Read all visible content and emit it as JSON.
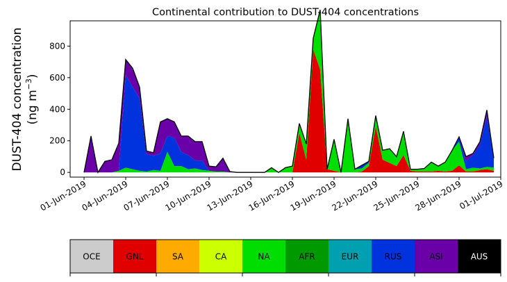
{
  "chart_data": {
    "type": "area",
    "stacked": true,
    "title": "Continental contribution to DUST-404 concentrations",
    "ylabel_line1": "DUST-404 concentration",
    "ylabel_line2_pre": "(ng m",
    "ylabel_line2_sup": "−3",
    "ylabel_line2_post": ")",
    "xlabel": "",
    "xlim": [
      "2019-05-31",
      "2019-07-01"
    ],
    "ylim": [
      -30,
      960
    ],
    "yticks": [
      0,
      200,
      400,
      600,
      800
    ],
    "xticks": [
      "01-Jun-2019",
      "04-Jun-2019",
      "07-Jun-2019",
      "10-Jun-2019",
      "13-Jun-2019",
      "16-Jun-2019",
      "19-Jun-2019",
      "22-Jun-2019",
      "25-Jun-2019",
      "28-Jun-2019",
      "01-Jul-2019"
    ],
    "x": [
      "2019-06-01",
      "2019-06-01T12",
      "2019-06-02",
      "2019-06-02T12",
      "2019-06-03",
      "2019-06-03T12",
      "2019-06-04",
      "2019-06-04T12",
      "2019-06-05",
      "2019-06-05T12",
      "2019-06-06",
      "2019-06-06T12",
      "2019-06-07",
      "2019-06-07T12",
      "2019-06-08",
      "2019-06-08T12",
      "2019-06-09",
      "2019-06-09T12",
      "2019-06-10",
      "2019-06-10T12",
      "2019-06-11",
      "2019-06-11T12",
      "2019-06-12",
      "2019-06-12T12",
      "2019-06-13",
      "2019-06-13T12",
      "2019-06-14",
      "2019-06-14T12",
      "2019-06-15",
      "2019-06-15T12",
      "2019-06-16",
      "2019-06-16T12",
      "2019-06-17",
      "2019-06-17T12",
      "2019-06-18",
      "2019-06-18T12",
      "2019-06-19",
      "2019-06-19T12",
      "2019-06-20",
      "2019-06-20T12",
      "2019-06-21",
      "2019-06-21T12",
      "2019-06-22",
      "2019-06-22T12",
      "2019-06-23",
      "2019-06-23T12",
      "2019-06-24",
      "2019-06-24T12",
      "2019-06-25",
      "2019-06-25T12",
      "2019-06-26",
      "2019-06-26T12",
      "2019-06-27",
      "2019-06-27T12",
      "2019-06-28",
      "2019-06-28T12",
      "2019-06-29",
      "2019-06-29T12",
      "2019-06-30",
      "2019-06-30T12"
    ],
    "series": [
      {
        "name": "OCE",
        "color": "#cccccc",
        "values": [
          0,
          0,
          0,
          0,
          0,
          0,
          0,
          0,
          0,
          0,
          0,
          0,
          0,
          0,
          0,
          0,
          0,
          0,
          0,
          0,
          0,
          0,
          0,
          0,
          0,
          0,
          0,
          0,
          0,
          0,
          0,
          0,
          0,
          0,
          0,
          0,
          0,
          0,
          0,
          0,
          0,
          0,
          0,
          0,
          0,
          0,
          0,
          0,
          0,
          0,
          0,
          0,
          0,
          0,
          0,
          0,
          0,
          0,
          0,
          0
        ]
      },
      {
        "name": "GNL",
        "color": "#e00000",
        "values": [
          0,
          0,
          0,
          0,
          0,
          0,
          0,
          0,
          0,
          0,
          0,
          0,
          0,
          0,
          0,
          0,
          0,
          0,
          0,
          0,
          0,
          0,
          0,
          0,
          0,
          0,
          0,
          0,
          0,
          0,
          0,
          250,
          80,
          780,
          650,
          20,
          10,
          0,
          0,
          0,
          5,
          40,
          290,
          80,
          60,
          40,
          110,
          10,
          5,
          5,
          5,
          10,
          5,
          10,
          45,
          5,
          5,
          15,
          20,
          10
        ]
      },
      {
        "name": "SA",
        "color": "#ffaa00",
        "values": [
          0,
          0,
          0,
          0,
          0,
          0,
          0,
          0,
          0,
          0,
          0,
          0,
          0,
          0,
          0,
          0,
          0,
          0,
          0,
          0,
          0,
          0,
          0,
          0,
          0,
          0,
          0,
          0,
          0,
          0,
          0,
          0,
          0,
          0,
          0,
          0,
          0,
          0,
          0,
          0,
          0,
          0,
          0,
          0,
          0,
          0,
          0,
          0,
          0,
          0,
          0,
          0,
          0,
          0,
          0,
          0,
          0,
          0,
          0,
          0
        ]
      },
      {
        "name": "CA",
        "color": "#ccff00",
        "values": [
          0,
          0,
          0,
          0,
          0,
          0,
          0,
          0,
          0,
          0,
          0,
          0,
          0,
          0,
          0,
          0,
          0,
          0,
          0,
          0,
          0,
          0,
          0,
          0,
          0,
          0,
          0,
          0,
          0,
          0,
          0,
          0,
          0,
          0,
          0,
          0,
          0,
          0,
          0,
          0,
          0,
          0,
          0,
          0,
          0,
          0,
          0,
          0,
          0,
          0,
          0,
          0,
          0,
          0,
          0,
          0,
          0,
          0,
          0,
          0
        ]
      },
      {
        "name": "NA",
        "color": "#00dd00",
        "values": [
          0,
          0,
          0,
          0,
          0,
          10,
          30,
          20,
          10,
          5,
          15,
          10,
          130,
          40,
          40,
          20,
          25,
          15,
          10,
          5,
          5,
          0,
          0,
          0,
          0,
          0,
          0,
          30,
          0,
          30,
          40,
          60,
          100,
          70,
          380,
          0,
          200,
          0,
          340,
          20,
          20,
          20,
          70,
          60,
          90,
          60,
          150,
          10,
          15,
          20,
          60,
          30,
          60,
          130,
          150,
          15,
          25,
          10,
          15,
          20
        ]
      },
      {
        "name": "AFR",
        "color": "#009900",
        "values": [
          0,
          0,
          0,
          0,
          0,
          0,
          0,
          0,
          0,
          0,
          0,
          0,
          0,
          0,
          0,
          0,
          0,
          0,
          0,
          0,
          0,
          0,
          0,
          0,
          0,
          0,
          0,
          0,
          0,
          0,
          0,
          0,
          0,
          0,
          0,
          0,
          0,
          0,
          0,
          0,
          0,
          0,
          0,
          0,
          0,
          0,
          0,
          0,
          0,
          0,
          0,
          0,
          0,
          0,
          0,
          0,
          0,
          0,
          0,
          0
        ]
      },
      {
        "name": "EUR",
        "color": "#00a0b0",
        "values": [
          0,
          0,
          0,
          0,
          0,
          0,
          0,
          0,
          0,
          0,
          0,
          0,
          0,
          0,
          0,
          0,
          0,
          0,
          0,
          0,
          0,
          0,
          0,
          0,
          0,
          0,
          0,
          0,
          0,
          0,
          0,
          0,
          0,
          0,
          0,
          0,
          0,
          0,
          0,
          0,
          0,
          0,
          0,
          0,
          0,
          0,
          0,
          0,
          0,
          0,
          0,
          0,
          0,
          0,
          0,
          0,
          0,
          0,
          0,
          0
        ]
      },
      {
        "name": "RUS",
        "color": "#0033dd",
        "values": [
          0,
          0,
          0,
          0,
          0,
          0,
          590,
          520,
          460,
          110,
          90,
          110,
          100,
          180,
          90,
          90,
          50,
          60,
          0,
          0,
          0,
          0,
          0,
          0,
          0,
          0,
          0,
          0,
          0,
          0,
          0,
          0,
          0,
          0,
          0,
          0,
          0,
          0,
          0,
          0,
          20,
          10,
          0,
          0,
          0,
          0,
          0,
          0,
          0,
          0,
          0,
          0,
          0,
          0,
          30,
          50,
          80,
          150,
          320,
          60
        ]
      },
      {
        "name": "ASI",
        "color": "#6a00a8",
        "values": [
          0,
          230,
          0,
          70,
          80,
          175,
          95,
          120,
          70,
          20,
          20,
          200,
          110,
          100,
          100,
          120,
          120,
          120,
          30,
          30,
          85,
          5,
          0,
          0,
          0,
          0,
          0,
          0,
          0,
          0,
          0,
          0,
          0,
          0,
          0,
          0,
          0,
          0,
          0,
          0,
          0,
          0,
          0,
          0,
          0,
          0,
          0,
          0,
          0,
          0,
          0,
          0,
          0,
          0,
          0,
          30,
          10,
          20,
          40,
          0
        ]
      },
      {
        "name": "AUS",
        "color": "#000000",
        "values": [
          0,
          0,
          0,
          0,
          0,
          0,
          0,
          0,
          0,
          0,
          0,
          0,
          0,
          0,
          0,
          0,
          0,
          0,
          0,
          0,
          0,
          0,
          0,
          0,
          0,
          0,
          0,
          0,
          0,
          0,
          0,
          0,
          0,
          0,
          0,
          0,
          0,
          0,
          0,
          0,
          0,
          0,
          0,
          0,
          0,
          0,
          0,
          0,
          0,
          0,
          0,
          0,
          0,
          0,
          0,
          0,
          0,
          0,
          0,
          0
        ]
      }
    ],
    "legend": [
      {
        "label": "OCE",
        "color": "#cccccc",
        "text_color": "#000000"
      },
      {
        "label": "GNL",
        "color": "#e00000",
        "text_color": "#000000"
      },
      {
        "label": "SA",
        "color": "#ffaa00",
        "text_color": "#000000"
      },
      {
        "label": "CA",
        "color": "#ccff00",
        "text_color": "#000000"
      },
      {
        "label": "NA",
        "color": "#00dd00",
        "text_color": "#000000"
      },
      {
        "label": "AFR",
        "color": "#009900",
        "text_color": "#000000"
      },
      {
        "label": "EUR",
        "color": "#00a0b0",
        "text_color": "#000000"
      },
      {
        "label": "RUS",
        "color": "#0033dd",
        "text_color": "#000000"
      },
      {
        "label": "ASI",
        "color": "#6a00a8",
        "text_color": "#000000"
      },
      {
        "label": "AUS",
        "color": "#000000",
        "text_color": "#ffffff"
      }
    ],
    "grid": false,
    "legend_placement": "below as colorbar"
  }
}
